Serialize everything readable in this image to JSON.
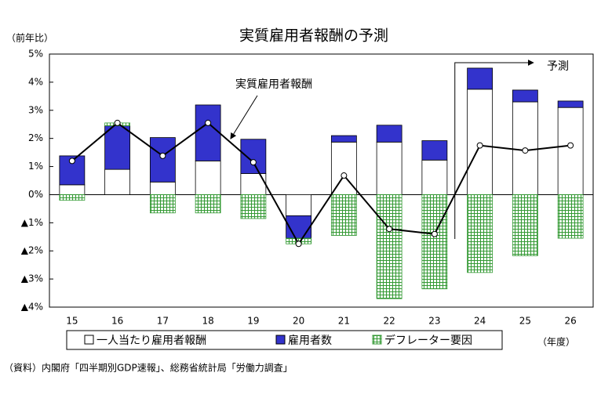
{
  "chart_data": {
    "type": "bar",
    "title": "実質雇用者報酬の予測",
    "y_unit_label": "（前年比）",
    "x_unit_label": "（年度）",
    "source": "（資料）内閣府「四半期別GDP速報」、総務省統計局「労働力調査」",
    "forecast_label": "予測",
    "forecast_start": "24",
    "categories": [
      "15",
      "16",
      "17",
      "18",
      "19",
      "20",
      "21",
      "22",
      "23",
      "24",
      "25",
      "26"
    ],
    "series": [
      {
        "name": "一人当たり雇用者報酬",
        "color": "#ffffff",
        "values": [
          0.35,
          0.9,
          0.45,
          1.2,
          0.75,
          -0.75,
          1.87,
          1.87,
          1.23,
          3.75,
          3.3,
          3.1
        ]
      },
      {
        "name": "雇用者数",
        "color": "#3333cc",
        "values": [
          1.03,
          1.55,
          1.58,
          1.99,
          1.22,
          -0.8,
          0.23,
          0.6,
          0.69,
          0.75,
          0.42,
          0.23
        ]
      },
      {
        "name": "デフレーター要因",
        "color": "#339933",
        "pattern": "grid",
        "values": [
          -0.2,
          0.1,
          -0.65,
          -0.65,
          -0.85,
          -0.2,
          -1.45,
          -3.7,
          -3.35,
          -2.77,
          -2.17,
          -1.55
        ]
      }
    ],
    "line_series": {
      "name": "実質雇用者報酬",
      "color": "#000000",
      "values": [
        1.2,
        2.55,
        1.38,
        2.55,
        1.15,
        -1.75,
        0.68,
        -1.22,
        -1.4,
        1.75,
        1.57,
        1.75
      ]
    },
    "ylim": [
      -4,
      5
    ],
    "yticks": [
      {
        "value": 5,
        "label": "5%"
      },
      {
        "value": 4,
        "label": "4%"
      },
      {
        "value": 3,
        "label": "3%"
      },
      {
        "value": 2,
        "label": "2%"
      },
      {
        "value": 1,
        "label": "1%"
      },
      {
        "value": 0,
        "label": "0%"
      },
      {
        "value": -1,
        "label": "▲1%"
      },
      {
        "value": -2,
        "label": "▲2%"
      },
      {
        "value": -3,
        "label": "▲3%"
      },
      {
        "value": -4,
        "label": "▲4%"
      }
    ],
    "grid": false
  }
}
